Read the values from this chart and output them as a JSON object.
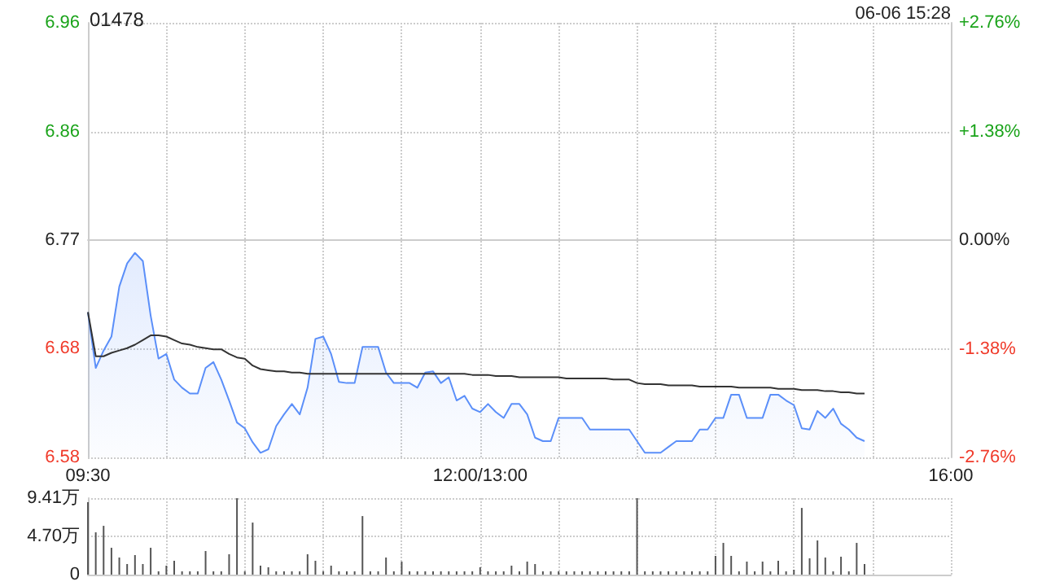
{
  "chart_data": [
    {
      "type": "line",
      "title": "01478",
      "annotations": [
        "06-06 15:28"
      ],
      "categories": [
        "09:30",
        null,
        null,
        null,
        null,
        null,
        null,
        null,
        null,
        null,
        null,
        null,
        null,
        null,
        null,
        null,
        null,
        null,
        null,
        null,
        null,
        null,
        null,
        null,
        null,
        null,
        null,
        null,
        null,
        null,
        null,
        null,
        null,
        null,
        null,
        null,
        null,
        null,
        null,
        null,
        null,
        null,
        null,
        null,
        null,
        null,
        null,
        null,
        null,
        null,
        "12:00/13:00",
        null,
        null,
        null,
        null,
        null,
        null,
        null,
        null,
        null,
        null,
        null,
        null,
        null,
        null,
        null,
        null,
        null,
        null,
        null,
        null,
        null,
        null,
        null,
        null,
        null,
        null,
        null,
        null,
        null,
        null,
        null,
        null,
        null,
        null,
        null,
        null,
        null,
        null,
        null,
        null,
        null,
        null,
        null,
        null,
        null,
        null,
        null,
        null,
        null,
        null,
        null,
        null,
        null,
        null,
        null,
        null,
        null,
        null,
        null,
        "16:00"
      ],
      "ylim": [
        6.583,
        6.957
      ],
      "yticks": [
        {
          "value": 6.583,
          "label": "6.58"
        },
        {
          "value": 6.677,
          "label": "6.68"
        },
        {
          "value": 6.77,
          "label": "6.77"
        },
        {
          "value": 6.863,
          "label": "6.86"
        },
        {
          "value": 6.957,
          "label": "6.96"
        }
      ],
      "y2lim": [
        -2.76,
        2.76
      ],
      "y2ticks": [
        {
          "value": -2.76,
          "label": "-2.76%"
        },
        {
          "value": -1.38,
          "label": "-1.38%"
        },
        {
          "value": 0,
          "label": "0.00%"
        },
        {
          "value": 1.38,
          "label": "+1.38%"
        },
        {
          "value": 2.76,
          "label": "+2.76%"
        }
      ],
      "grid": true,
      "marker": "none",
      "line_style": "solid",
      "series": [
        {
          "type": "area",
          "color": "#5b8ff9",
          "values": [
            6.708,
            6.66,
            6.675,
            6.687,
            6.73,
            6.75,
            6.759,
            6.752,
            6.705,
            6.668,
            6.672,
            6.65,
            6.643,
            6.638,
            6.638,
            6.66,
            6.665,
            6.65,
            6.632,
            6.613,
            6.608,
            6.596,
            6.587,
            6.59,
            6.61,
            6.62,
            6.629,
            6.62,
            6.643,
            6.685,
            6.687,
            6.672,
            6.648,
            6.647,
            6.647,
            6.678,
            6.678,
            6.678,
            6.656,
            6.647,
            6.647,
            6.647,
            6.643,
            6.656,
            6.657,
            6.647,
            6.652,
            6.632,
            6.636,
            6.625,
            6.622,
            6.629,
            6.622,
            6.617,
            6.629,
            6.629,
            6.62,
            6.6,
            6.597,
            6.597,
            6.617,
            6.617,
            6.617,
            6.617,
            6.607,
            6.607,
            6.607,
            6.607,
            6.607,
            6.607,
            6.597,
            6.587,
            6.587,
            6.587,
            6.592,
            6.597,
            6.597,
            6.597,
            6.607,
            6.607,
            6.617,
            6.617,
            6.637,
            6.637,
            6.617,
            6.617,
            6.617,
            6.637,
            6.637,
            6.632,
            6.628,
            6.608,
            6.607,
            6.623,
            6.617,
            6.625,
            6.612,
            6.607,
            6.6,
            6.597,
            null,
            null,
            null,
            null,
            null,
            null,
            null,
            null,
            null,
            null,
            null
          ]
        },
        {
          "color": "#333333",
          "values": [
            6.708,
            6.67,
            6.67,
            6.673,
            6.675,
            6.677,
            6.68,
            6.684,
            6.688,
            6.688,
            6.687,
            6.684,
            6.681,
            6.68,
            6.678,
            6.677,
            6.676,
            6.676,
            6.672,
            6.669,
            6.668,
            6.662,
            6.659,
            6.658,
            6.657,
            6.657,
            6.656,
            6.656,
            6.655,
            6.655,
            6.655,
            6.655,
            6.655,
            6.655,
            6.655,
            6.655,
            6.655,
            6.655,
            6.655,
            6.655,
            6.655,
            6.655,
            6.655,
            6.655,
            6.655,
            6.655,
            6.655,
            6.655,
            6.655,
            6.654,
            6.654,
            6.654,
            6.653,
            6.653,
            6.653,
            6.652,
            6.652,
            6.652,
            6.652,
            6.652,
            6.652,
            6.651,
            6.651,
            6.651,
            6.651,
            6.651,
            6.651,
            6.65,
            6.65,
            6.65,
            6.647,
            6.646,
            6.646,
            6.646,
            6.645,
            6.645,
            6.645,
            6.645,
            6.644,
            6.644,
            6.644,
            6.644,
            6.644,
            6.643,
            6.643,
            6.643,
            6.643,
            6.643,
            6.642,
            6.642,
            6.642,
            6.641,
            6.641,
            6.641,
            6.64,
            6.64,
            6.639,
            6.639,
            6.638,
            6.638,
            null,
            null,
            null,
            null,
            null,
            null,
            null,
            null,
            null,
            null,
            null
          ]
        }
      ]
    },
    {
      "type": "bar",
      "color": "#555555",
      "tick_labels": "y",
      "grid": true,
      "categories": [
        null,
        null,
        null,
        null,
        null,
        null,
        null,
        null,
        null,
        null,
        null,
        null,
        null,
        null,
        null,
        null,
        null,
        null,
        null,
        null,
        null,
        null,
        null,
        null,
        null,
        null,
        null,
        null,
        null,
        null,
        null,
        null,
        null,
        null,
        null,
        null,
        null,
        null,
        null,
        null,
        null,
        null,
        null,
        null,
        null,
        null,
        null,
        null,
        null,
        null,
        null,
        null,
        null,
        null,
        null,
        null,
        null,
        null,
        null,
        null,
        null,
        null,
        null,
        null,
        null,
        null,
        null,
        null,
        null,
        null,
        null,
        null,
        null,
        null,
        null,
        null,
        null,
        null,
        null,
        null,
        null,
        null,
        null,
        null,
        null,
        null,
        null,
        null,
        null,
        null,
        null,
        null,
        null,
        null,
        null,
        null,
        null,
        null,
        null,
        null,
        null,
        null,
        null,
        null,
        null,
        null,
        null,
        null,
        null,
        null,
        null
      ],
      "ylim": [
        0,
        9.41
      ],
      "yticks": [
        {
          "value": 0,
          "label": "0"
        },
        {
          "value": 4.7,
          "label": "4.70万"
        },
        {
          "value": 9.41,
          "label": "9.41万"
        }
      ],
      "values": [
        8.9,
        5.2,
        6.0,
        3.3,
        2.1,
        1.3,
        2.4,
        1.3,
        3.3,
        0.4,
        1.1,
        1.7,
        0.4,
        0.4,
        0.4,
        2.9,
        0.4,
        0.4,
        2.5,
        9.4,
        0.4,
        6.4,
        1.1,
        0.9,
        0.4,
        0.4,
        0.4,
        0.4,
        2.5,
        1.7,
        0.4,
        1.1,
        0.4,
        0.4,
        0.4,
        7.2,
        0.4,
        0.4,
        2.1,
        0.4,
        1.6,
        0.4,
        0.4,
        0.4,
        0.4,
        0.4,
        0.4,
        0.4,
        0.4,
        0.4,
        0.9,
        0.4,
        0.4,
        0.4,
        1.1,
        0.4,
        1.6,
        1.3,
        0.4,
        0.4,
        0.4,
        0.4,
        0.4,
        0.4,
        0.4,
        0.4,
        0.4,
        0.4,
        0.4,
        0.4,
        9.4,
        0.4,
        0.4,
        0.4,
        0.4,
        0.4,
        0.4,
        0.4,
        0.4,
        0.4,
        2.3,
        3.9,
        2.3,
        0.4,
        1.6,
        0.4,
        1.6,
        0.4,
        1.7,
        0.4,
        0.6,
        8.2,
        2.0,
        4.2,
        2.1,
        0.4,
        2.2,
        0.4,
        3.9,
        1.3,
        null,
        null,
        null,
        null,
        null,
        null,
        null,
        null,
        null,
        null,
        null
      ]
    }
  ]
}
